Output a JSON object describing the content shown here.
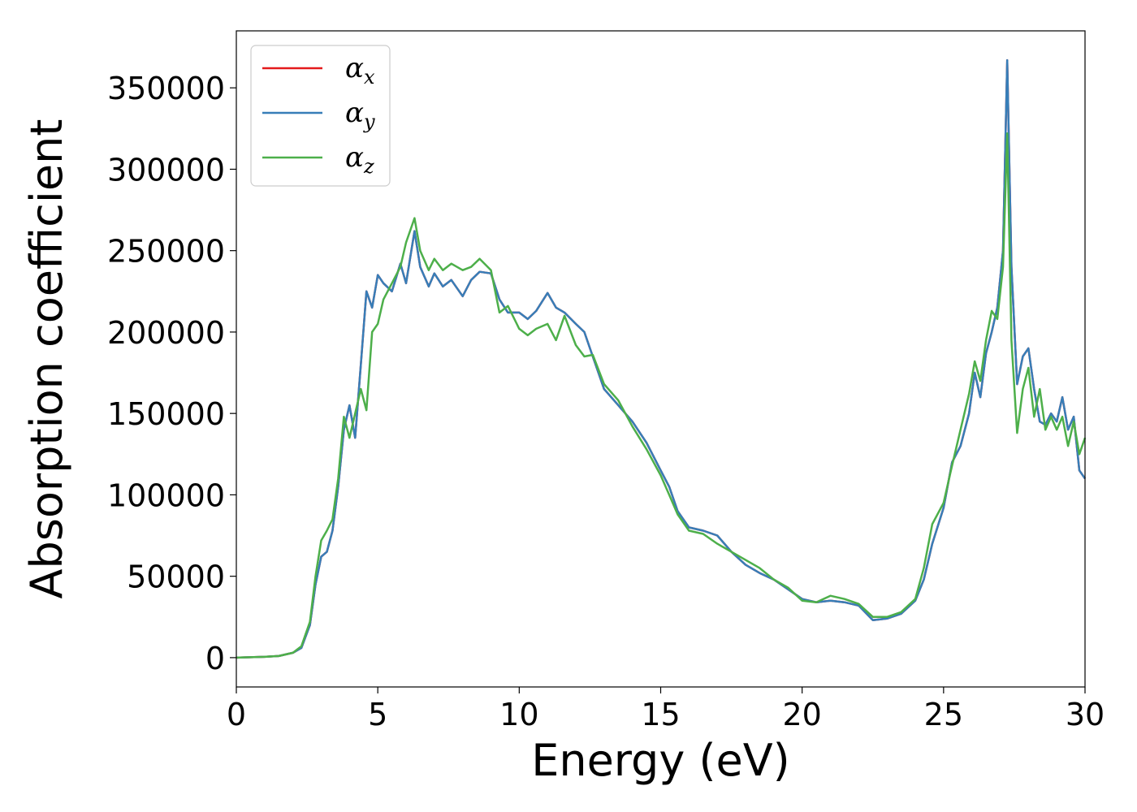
{
  "chart_data": {
    "type": "line",
    "xlabel": "Energy (eV)",
    "ylabel": "Absorption coefficient",
    "xlim": [
      0,
      30
    ],
    "ylim": [
      -18000,
      385000
    ],
    "xticks": [
      0,
      5,
      10,
      15,
      20,
      25,
      30
    ],
    "yticks": [
      0,
      50000,
      100000,
      150000,
      200000,
      250000,
      300000,
      350000
    ],
    "grid": false,
    "legend_position": "top-left",
    "series": [
      {
        "name": "α_x",
        "label_main": "α",
        "label_sub": "x",
        "color": "#e41a1c",
        "x": [
          0,
          1,
          1.5,
          2,
          2.3,
          2.6,
          2.8,
          3.0,
          3.2,
          3.4,
          3.6,
          3.8,
          4.0,
          4.2,
          4.4,
          4.6,
          4.8,
          5.0,
          5.2,
          5.5,
          5.8,
          6.0,
          6.3,
          6.5,
          6.8,
          7.0,
          7.3,
          7.6,
          8.0,
          8.3,
          8.6,
          9.0,
          9.3,
          9.6,
          10.0,
          10.3,
          10.6,
          11.0,
          11.3,
          11.6,
          12.0,
          12.3,
          12.6,
          13.0,
          13.5,
          14.0,
          14.5,
          15.0,
          15.3,
          15.6,
          16.0,
          16.5,
          17.0,
          17.5,
          18.0,
          18.5,
          19.0,
          19.5,
          20.0,
          20.5,
          21.0,
          21.5,
          22.0,
          22.5,
          23.0,
          23.5,
          24.0,
          24.3,
          24.6,
          25.0,
          25.3,
          25.6,
          25.9,
          26.1,
          26.3,
          26.5,
          26.7,
          26.9,
          27.1,
          27.25,
          27.4,
          27.6,
          27.8,
          28.0,
          28.2,
          28.4,
          28.6,
          28.8,
          29.0,
          29.2,
          29.4,
          29.6,
          29.8,
          30.0
        ],
        "y": [
          0,
          500,
          1000,
          3000,
          6000,
          20000,
          45000,
          62000,
          65000,
          78000,
          105000,
          140000,
          155000,
          135000,
          180000,
          225000,
          215000,
          235000,
          230000,
          225000,
          242000,
          230000,
          262000,
          240000,
          228000,
          236000,
          228000,
          232000,
          222000,
          232000,
          237000,
          236000,
          220000,
          212000,
          212000,
          208000,
          213000,
          224000,
          215000,
          212000,
          205000,
          200000,
          185000,
          165000,
          155000,
          145000,
          132000,
          115000,
          105000,
          90000,
          80000,
          78000,
          75000,
          65000,
          57000,
          52000,
          48000,
          42000,
          36000,
          34000,
          35000,
          34000,
          32000,
          23000,
          24000,
          27000,
          35000,
          48000,
          70000,
          92000,
          120000,
          130000,
          150000,
          175000,
          160000,
          187000,
          200000,
          215000,
          250000,
          367000,
          240000,
          168000,
          185000,
          190000,
          165000,
          145000,
          143000,
          150000,
          145000,
          160000,
          140000,
          148000,
          115000,
          110000
        ]
      },
      {
        "name": "α_y",
        "label_main": "α",
        "label_sub": "y",
        "color": "#377eb8",
        "x": [
          0,
          1,
          1.5,
          2,
          2.3,
          2.6,
          2.8,
          3.0,
          3.2,
          3.4,
          3.6,
          3.8,
          4.0,
          4.2,
          4.4,
          4.6,
          4.8,
          5.0,
          5.2,
          5.5,
          5.8,
          6.0,
          6.3,
          6.5,
          6.8,
          7.0,
          7.3,
          7.6,
          8.0,
          8.3,
          8.6,
          9.0,
          9.3,
          9.6,
          10.0,
          10.3,
          10.6,
          11.0,
          11.3,
          11.6,
          12.0,
          12.3,
          12.6,
          13.0,
          13.5,
          14.0,
          14.5,
          15.0,
          15.3,
          15.6,
          16.0,
          16.5,
          17.0,
          17.5,
          18.0,
          18.5,
          19.0,
          19.5,
          20.0,
          20.5,
          21.0,
          21.5,
          22.0,
          22.5,
          23.0,
          23.5,
          24.0,
          24.3,
          24.6,
          25.0,
          25.3,
          25.6,
          25.9,
          26.1,
          26.3,
          26.5,
          26.7,
          26.9,
          27.1,
          27.25,
          27.4,
          27.6,
          27.8,
          28.0,
          28.2,
          28.4,
          28.6,
          28.8,
          29.0,
          29.2,
          29.4,
          29.6,
          29.8,
          30.0
        ],
        "y": [
          0,
          500,
          1000,
          3000,
          6000,
          20000,
          45000,
          62000,
          65000,
          78000,
          105000,
          140000,
          155000,
          135000,
          180000,
          225000,
          215000,
          235000,
          230000,
          225000,
          242000,
          230000,
          262000,
          240000,
          228000,
          236000,
          228000,
          232000,
          222000,
          232000,
          237000,
          236000,
          220000,
          212000,
          212000,
          208000,
          213000,
          224000,
          215000,
          212000,
          205000,
          200000,
          185000,
          165000,
          155000,
          145000,
          132000,
          115000,
          105000,
          90000,
          80000,
          78000,
          75000,
          65000,
          57000,
          52000,
          48000,
          42000,
          36000,
          34000,
          35000,
          34000,
          32000,
          23000,
          24000,
          27000,
          35000,
          48000,
          70000,
          92000,
          120000,
          130000,
          150000,
          175000,
          160000,
          187000,
          200000,
          215000,
          250000,
          367000,
          240000,
          168000,
          185000,
          190000,
          165000,
          145000,
          143000,
          150000,
          145000,
          160000,
          140000,
          148000,
          115000,
          110000
        ]
      },
      {
        "name": "α_z",
        "label_main": "α",
        "label_sub": "z",
        "color": "#4daf4a",
        "x": [
          0,
          1,
          1.5,
          2,
          2.3,
          2.6,
          2.8,
          3.0,
          3.2,
          3.4,
          3.6,
          3.8,
          4.0,
          4.2,
          4.4,
          4.6,
          4.8,
          5.0,
          5.2,
          5.5,
          5.8,
          6.0,
          6.3,
          6.5,
          6.8,
          7.0,
          7.3,
          7.6,
          8.0,
          8.3,
          8.6,
          9.0,
          9.3,
          9.6,
          10.0,
          10.3,
          10.6,
          11.0,
          11.3,
          11.6,
          12.0,
          12.3,
          12.6,
          13.0,
          13.5,
          14.0,
          14.5,
          15.0,
          15.3,
          15.6,
          16.0,
          16.5,
          17.0,
          17.5,
          18.0,
          18.5,
          19.0,
          19.5,
          20.0,
          20.5,
          21.0,
          21.5,
          22.0,
          22.5,
          23.0,
          23.5,
          24.0,
          24.3,
          24.6,
          25.0,
          25.3,
          25.6,
          25.9,
          26.1,
          26.3,
          26.5,
          26.7,
          26.9,
          27.1,
          27.25,
          27.4,
          27.6,
          27.8,
          28.0,
          28.2,
          28.4,
          28.6,
          28.8,
          29.0,
          29.2,
          29.4,
          29.6,
          29.8,
          30.0
        ],
        "y": [
          0,
          500,
          1000,
          3000,
          7000,
          22000,
          50000,
          72000,
          78000,
          85000,
          110000,
          148000,
          135000,
          150000,
          165000,
          152000,
          200000,
          205000,
          220000,
          230000,
          240000,
          255000,
          270000,
          250000,
          238000,
          245000,
          238000,
          242000,
          238000,
          240000,
          245000,
          238000,
          212000,
          216000,
          202000,
          198000,
          202000,
          205000,
          195000,
          210000,
          192000,
          185000,
          186000,
          168000,
          158000,
          142000,
          128000,
          112000,
          100000,
          88000,
          78000,
          76000,
          70000,
          65000,
          60000,
          55000,
          48000,
          43000,
          35000,
          34000,
          38000,
          36000,
          33000,
          25000,
          25000,
          28000,
          36000,
          55000,
          82000,
          95000,
          118000,
          140000,
          162000,
          182000,
          170000,
          195000,
          213000,
          208000,
          240000,
          322000,
          195000,
          138000,
          165000,
          178000,
          148000,
          165000,
          140000,
          148000,
          140000,
          148000,
          130000,
          145000,
          125000,
          135000
        ]
      }
    ]
  }
}
